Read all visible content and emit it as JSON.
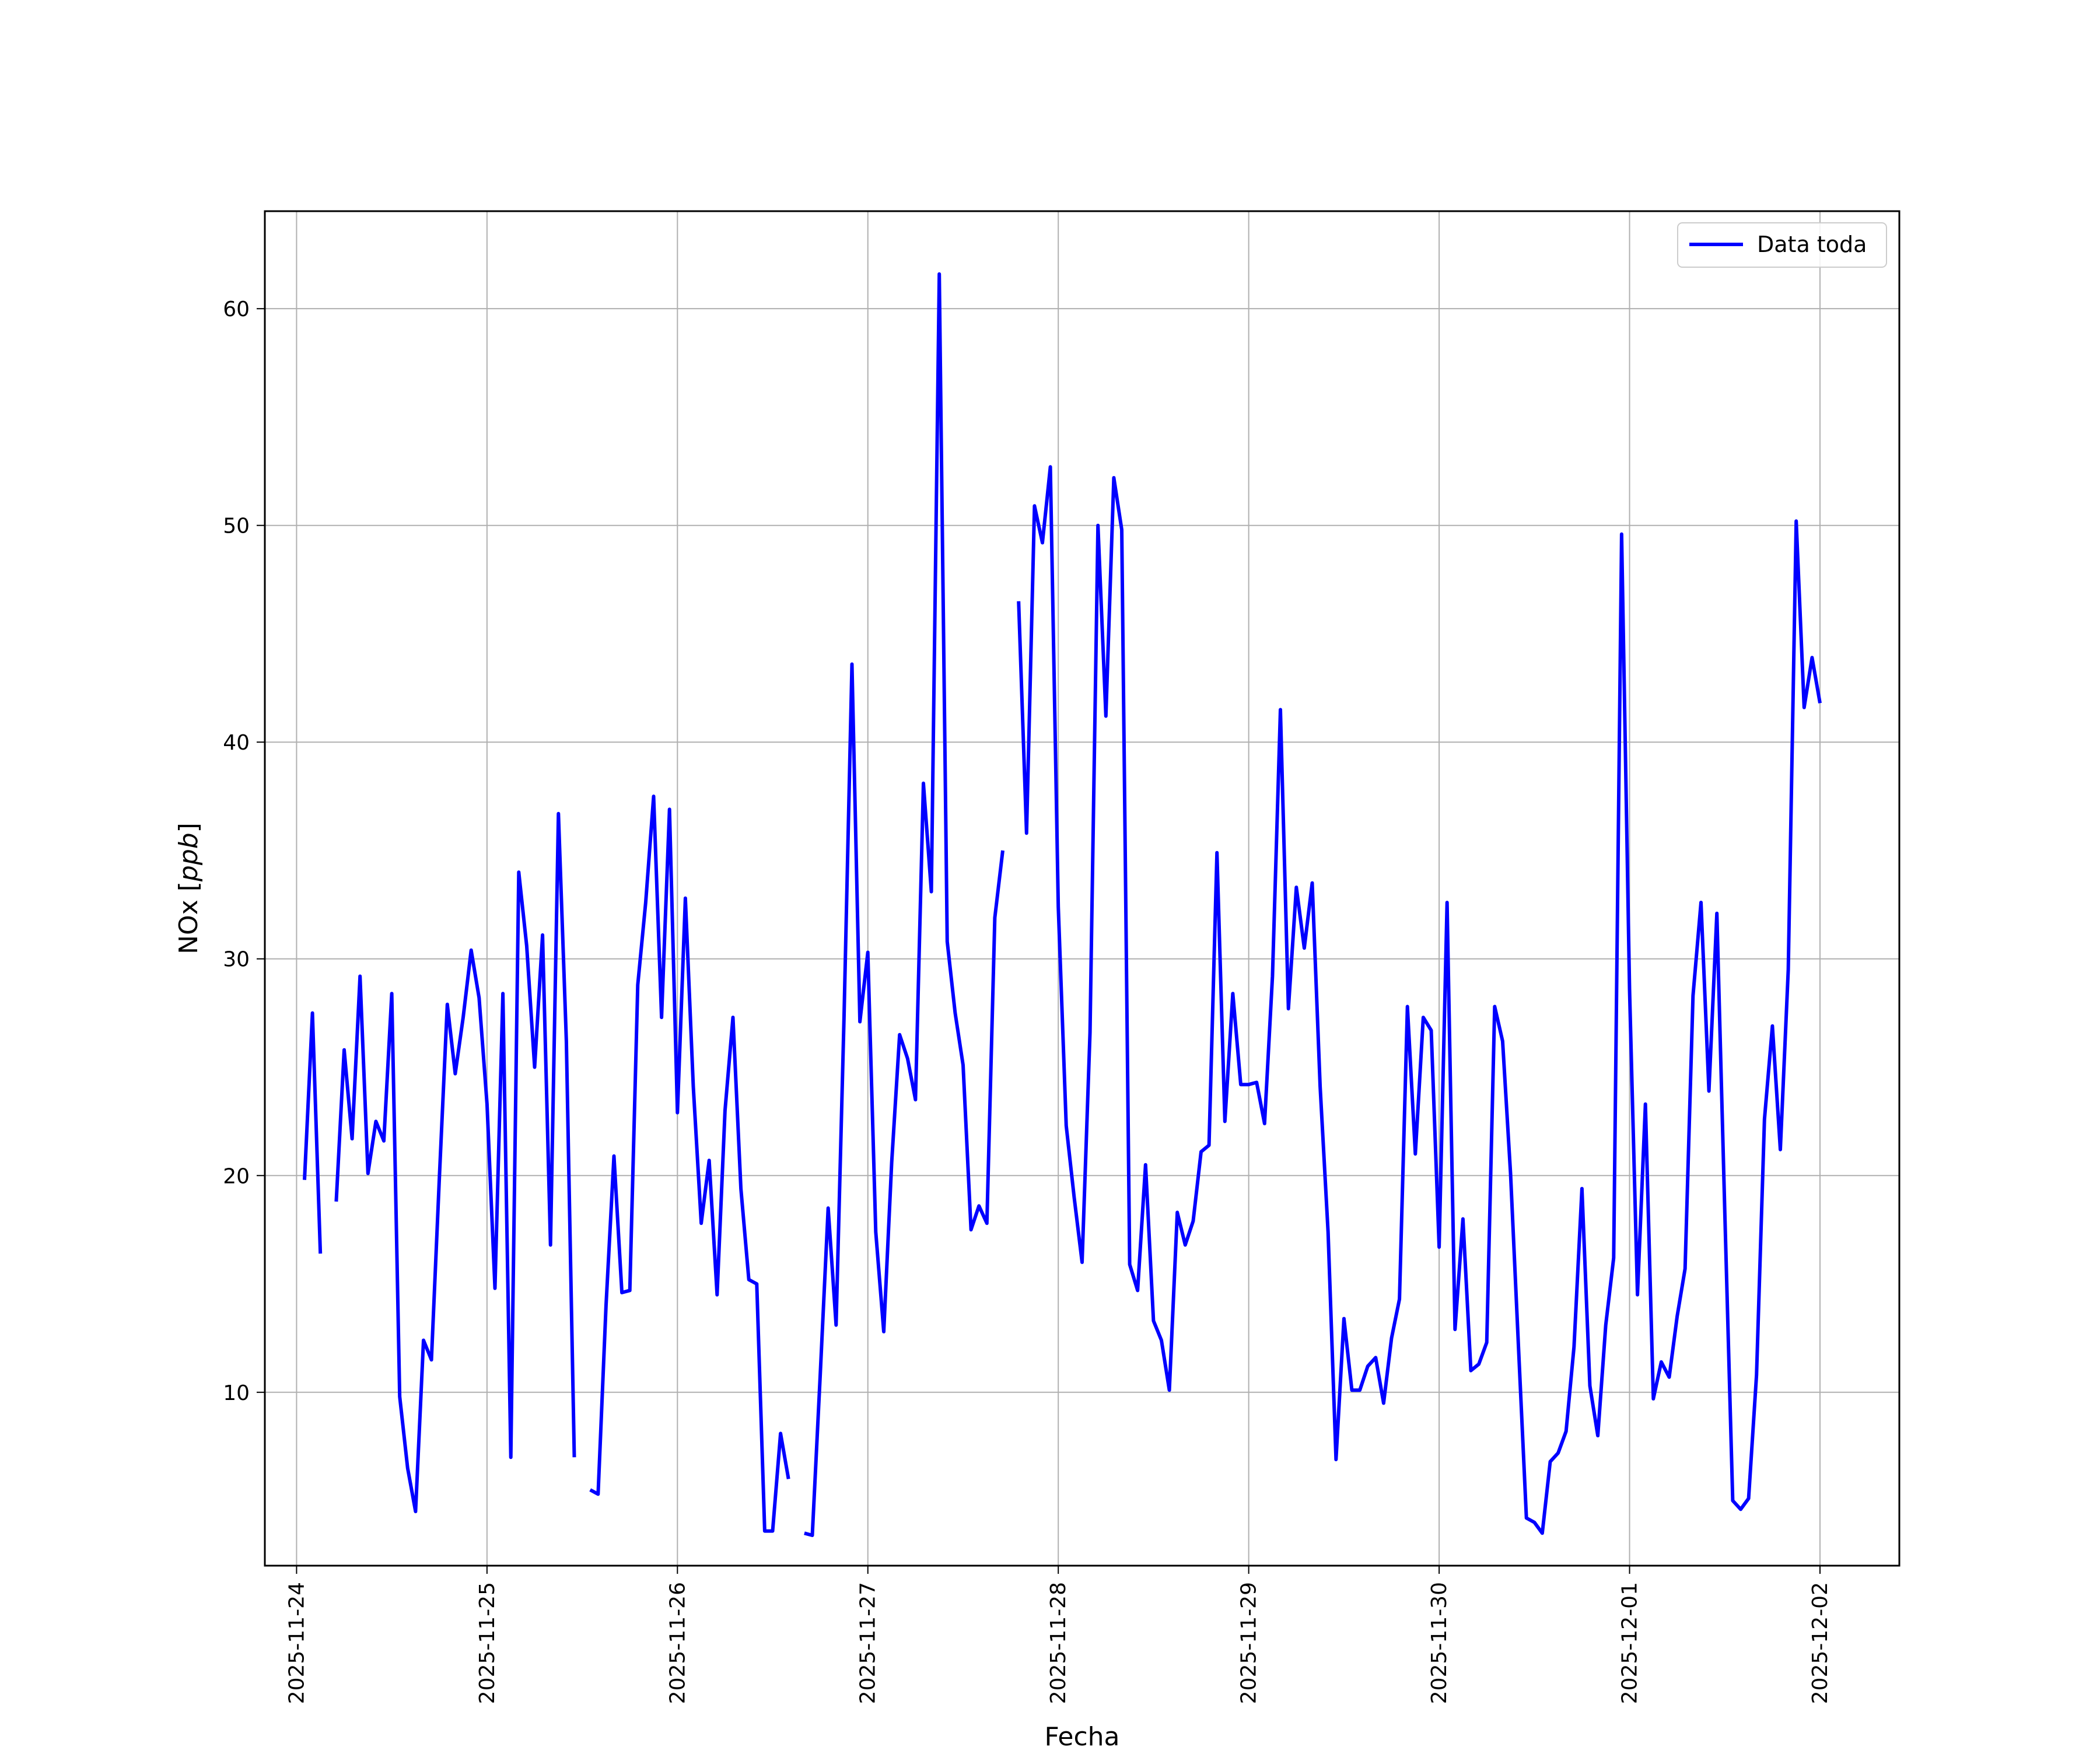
{
  "chart_data": {
    "type": "line",
    "title": "",
    "xlabel": "Fecha",
    "ylabel": "NOx [ppb]",
    "ylabel_main": "NOx [",
    "ylabel_unit": "ppb",
    "ylabel_close": "]",
    "xlim": [
      "2025-11-23T20:00",
      "2025-12-02T10:00"
    ],
    "ylim": [
      2.0,
      64.5
    ],
    "x_ticks": [
      "2025-11-24",
      "2025-11-25",
      "2025-11-26",
      "2025-11-27",
      "2025-11-28",
      "2025-11-29",
      "2025-11-30",
      "2025-12-01",
      "2025-12-02"
    ],
    "y_ticks": [
      10,
      20,
      30,
      40,
      50,
      60
    ],
    "grid": true,
    "legend_position": "top-right",
    "series": [
      {
        "name": "Data toda",
        "color": "#0000ff",
        "step_hours": 1,
        "start": "2025-11-24T01:00",
        "values": [
          19.8,
          27.5,
          16.4,
          null,
          18.8,
          25.8,
          21.7,
          29.2,
          20.1,
          22.5,
          21.6,
          28.4,
          9.8,
          6.5,
          4.5,
          12.4,
          11.5,
          19.9,
          27.9,
          24.7,
          27.3,
          30.4,
          28.2,
          23.3,
          14.8,
          28.4,
          7.0,
          34.0,
          30.6,
          25.0,
          31.1,
          16.8,
          36.7,
          26.2,
          7.0,
          null,
          5.5,
          5.3,
          14.0,
          20.9,
          14.6,
          14.7,
          28.8,
          32.6,
          37.5,
          27.3,
          36.9,
          22.9,
          32.8,
          24.1,
          17.8,
          20.7,
          14.5,
          23.0,
          27.3,
          19.4,
          15.2,
          15.0,
          3.6,
          3.6,
          8.1,
          6.0,
          null,
          3.5,
          3.4,
          10.8,
          18.5,
          13.1,
          27.3,
          43.6,
          27.1,
          30.3,
          17.4,
          12.8,
          20.6,
          26.5,
          25.4,
          23.5,
          38.1,
          33.1,
          61.6,
          30.8,
          27.5,
          25.1,
          17.5,
          18.6,
          17.8,
          31.9,
          35.0,
          null,
          46.5,
          35.8,
          50.9,
          49.2,
          52.7,
          32.4,
          22.3,
          19.0,
          16.0,
          26.6,
          50.0,
          41.2,
          52.2,
          49.8,
          15.9,
          14.7,
          20.5,
          13.3,
          12.4,
          10.1,
          18.3,
          16.8,
          17.9,
          21.1,
          21.4,
          34.9,
          22.5,
          28.4,
          24.2,
          24.2,
          24.3,
          22.4,
          29.2,
          41.5,
          27.7,
          33.3,
          30.5,
          33.5,
          24.1,
          17.4,
          6.9,
          13.4,
          10.1,
          10.1,
          11.2,
          11.6,
          9.5,
          12.5,
          14.3,
          27.8,
          21.0,
          27.3,
          26.7,
          16.7,
          32.6,
          12.9,
          18.0,
          11.0,
          11.3,
          12.3,
          27.8,
          26.2,
          20.1,
          12.1,
          4.2,
          4.0,
          3.5,
          6.8,
          7.2,
          8.2,
          12.1,
          19.4,
          10.3,
          8.0,
          13.1,
          16.2,
          49.6,
          28.6,
          14.5,
          23.3,
          9.7,
          11.4,
          10.7,
          13.5,
          15.7,
          28.3,
          32.6,
          23.9,
          32.1,
          18.3,
          5.0,
          4.6,
          5.1,
          10.8,
          22.6,
          26.9,
          21.2,
          29.5,
          50.2,
          41.6,
          43.9,
          41.8
        ]
      }
    ]
  }
}
